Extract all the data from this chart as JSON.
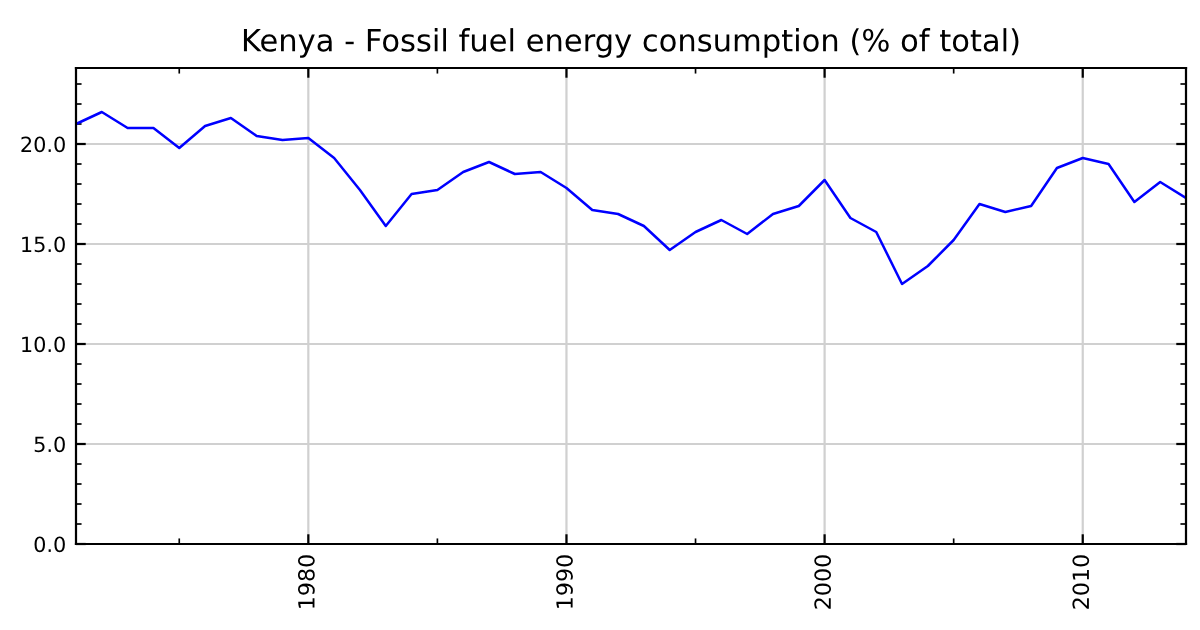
{
  "chart_data": {
    "type": "line",
    "title": "Kenya - Fossil fuel energy consumption (% of total)",
    "x": [
      1971,
      1972,
      1973,
      1974,
      1975,
      1976,
      1977,
      1978,
      1979,
      1980,
      1981,
      1982,
      1983,
      1984,
      1985,
      1986,
      1987,
      1988,
      1989,
      1990,
      1991,
      1992,
      1993,
      1994,
      1995,
      1996,
      1997,
      1998,
      1999,
      2000,
      2001,
      2002,
      2003,
      2004,
      2005,
      2006,
      2007,
      2008,
      2009,
      2010,
      2011,
      2012,
      2013,
      2014
    ],
    "series": [
      {
        "color": "#0000ff",
        "values": [
          21.0,
          21.6,
          20.8,
          20.8,
          19.8,
          20.9,
          21.3,
          20.4,
          20.2,
          20.3,
          19.3,
          17.7,
          15.9,
          17.5,
          17.7,
          18.6,
          19.1,
          18.5,
          18.6,
          17.8,
          16.7,
          16.5,
          15.9,
          14.7,
          15.6,
          16.2,
          15.5,
          16.5,
          16.9,
          18.2,
          16.3,
          15.6,
          13.0,
          13.9,
          15.2,
          17.0,
          16.6,
          16.9,
          18.8,
          19.3,
          19.0,
          17.1,
          18.1,
          17.3
        ]
      }
    ],
    "xlim": [
      1971,
      2014
    ],
    "xticks": [
      1980,
      1990,
      2000,
      2010
    ],
    "ylim": [
      0,
      23.8
    ],
    "yticks": [
      {
        "value": 0,
        "label": "0.0"
      },
      {
        "value": 5,
        "label": "5.0"
      },
      {
        "value": 10,
        "label": "10.0"
      },
      {
        "value": 15,
        "label": "15.0"
      },
      {
        "value": 20,
        "label": "20.0"
      }
    ],
    "grid": true,
    "marker": "none",
    "line_style": "solid"
  }
}
